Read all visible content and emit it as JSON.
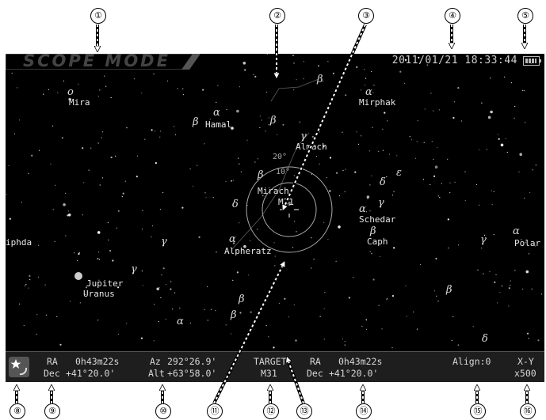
{
  "screen": {
    "mode_title": "SCOPE MODE",
    "datetime": "2011/01/21 18:33:44",
    "battery_icon": "battery-icon"
  },
  "labels": {
    "mira": "Mira",
    "hamal": "Hamal",
    "mirphak": "Mirphak",
    "almach": "Almach",
    "mirach": "Mirach",
    "m31": "M31",
    "schedar": "Schedar",
    "caph": "Caph",
    "diphda": "iphda",
    "alpheratz": "Alpheratz",
    "jupiter": "Jupiter",
    "uranus": "Uranus",
    "polaris": "Polar",
    "ring_20": "20°",
    "ring_10": "10°"
  },
  "greek": {
    "alpha": "α",
    "beta": "β",
    "gamma": "γ",
    "delta": "δ",
    "epsilon": "ε",
    "omicron": "o"
  },
  "status": {
    "mode_icon": "star-mode-icon",
    "ra_label": "RA",
    "ra_value": "0h43m22s",
    "dec_label": "Dec",
    "dec_value": "+41°20.0'",
    "az_label": "Az",
    "az_value": "292°26.9'",
    "alt_label": "Alt",
    "alt_value": "+63°58.0'",
    "target_label": "TARGET",
    "target_name": "M31",
    "target_ra_label": "RA",
    "target_ra_value": "0h43m22s",
    "target_dec_label": "Dec",
    "target_dec_value": "+41°20.0'",
    "align": "Align:0",
    "mount_mode": "X-Y",
    "zoom": "x500"
  },
  "callouts": [
    "①",
    "②",
    "③",
    "④",
    "⑤",
    "⑧",
    "⑨",
    "⑩",
    "⑪",
    "⑫",
    "⑬",
    "⑭",
    "⑮",
    "⑯"
  ]
}
